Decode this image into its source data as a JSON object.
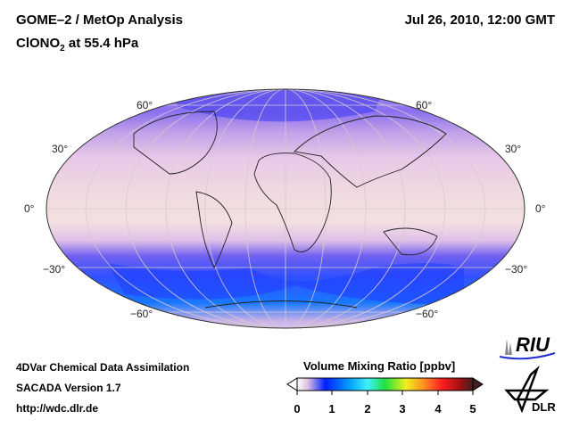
{
  "header": {
    "title_line1": "GOME–2 / MetOp Analysis",
    "title_line2_prefix": "ClONO",
    "title_line2_sub": "2",
    "title_line2_suffix": " at 55.4 hPa",
    "datetime": "Jul 26, 2010, 12:00 GMT"
  },
  "map": {
    "projection": "Mollweide",
    "lat_labels_left": [
      "60°",
      "30°",
      "0°",
      "−30°",
      "−60°"
    ],
    "lat_labels_right": [
      "60°",
      "30°",
      "0°",
      "−30°",
      "−60°"
    ]
  },
  "footer": {
    "line1": "4DVar Chemical Data Assimilation",
    "line2": "SACADA Version 1.7",
    "line3": "http://wdc.dlr.de"
  },
  "colorbar": {
    "title": "Volume Mixing Ratio [ppbv]",
    "ticks": [
      "0",
      "1",
      "2",
      "3",
      "4",
      "5"
    ],
    "range": [
      0,
      5
    ],
    "colors": [
      "#ffffff",
      "#e8c8e8",
      "#0020ff",
      "#00a0ff",
      "#40f0ff",
      "#20e040",
      "#f0f020",
      "#ff9020",
      "#ff2020",
      "#a01010",
      "#402020"
    ]
  },
  "logos": {
    "riu": "RIU",
    "dlr": "DLR"
  }
}
